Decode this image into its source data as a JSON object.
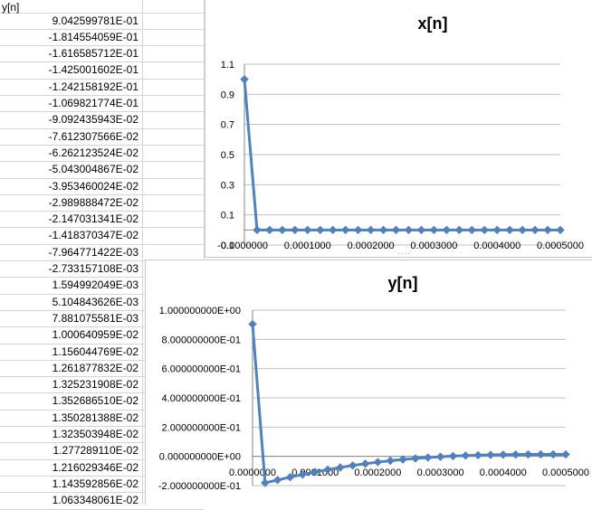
{
  "sheet": {
    "column_header": "y[n]",
    "values": [
      "9.042599781E-01",
      "-1.814554059E-01",
      "-1.616585712E-01",
      "-1.425001602E-01",
      "-1.242158192E-01",
      "-1.069821774E-01",
      "-9.092435943E-02",
      "-7.612307566E-02",
      "-6.262123524E-02",
      "-5.043004867E-02",
      "-3.953460024E-02",
      "-2.989888472E-02",
      "-2.147031341E-02",
      "-1.418370347E-02",
      "-7.964771422E-03",
      "-2.733157108E-03",
      "1.594992049E-03",
      "5.104843626E-03",
      "7.881075581E-03",
      "1.000640959E-02",
      "1.156044769E-02",
      "1.261877832E-02",
      "1.325231908E-02",
      "1.352686510E-02",
      "1.350281388E-02",
      "1.323503948E-02",
      "1.277289110E-02",
      "1.216029346E-02",
      "1.143592856E-02",
      "1.063348061E-02"
    ]
  },
  "chart_data": [
    {
      "type": "line",
      "title": "x[n]",
      "series_color": "#4f81bd",
      "x": [
        0,
        2e-05,
        4e-05,
        6e-05,
        8e-05,
        0.0001,
        0.00012,
        0.00014,
        0.00016,
        0.00018,
        0.0002,
        0.00022,
        0.00024,
        0.00026,
        0.00028,
        0.0003,
        0.00032,
        0.00034,
        0.00036,
        0.00038,
        0.0004,
        0.00042,
        0.00044,
        0.00046,
        0.00048,
        0.0005
      ],
      "y": [
        1,
        0,
        0,
        0,
        0,
        0,
        0,
        0,
        0,
        0,
        0,
        0,
        0,
        0,
        0,
        0,
        0,
        0,
        0,
        0,
        0,
        0,
        0,
        0,
        0,
        0
      ],
      "ylim": [
        -0.1,
        1.1
      ],
      "yticks": [
        "1.1",
        "0.9",
        "0.7",
        "0.5",
        "0.3",
        "0.1",
        "-0.1"
      ],
      "xticks": [
        "0.0000000",
        "0.0001000",
        "0.0002000",
        "0.0003000",
        "0.0004000",
        "0.0005000"
      ],
      "grid": true
    },
    {
      "type": "line",
      "title": "y[n]",
      "series_color": "#4f81bd",
      "x": [
        0,
        2e-05,
        4e-05,
        6e-05,
        8e-05,
        0.0001,
        0.00012,
        0.00014,
        0.00016,
        0.00018,
        0.0002,
        0.00022,
        0.00024,
        0.00026,
        0.00028,
        0.0003,
        0.00032,
        0.00034,
        0.00036,
        0.00038,
        0.0004,
        0.00042,
        0.00044,
        0.00046,
        0.00048,
        0.0005
      ],
      "y": [
        0.9042599781,
        -0.1814554059,
        -0.1616585712,
        -0.1425001602,
        -0.1242158192,
        -0.1069821774,
        -0.09092435943,
        -0.07612307566,
        -0.06262123524,
        -0.05043004867,
        -0.03953460024,
        -0.02989888472,
        -0.02147031341,
        -0.01418370347,
        -0.007964771422,
        -0.002733157108,
        0.001594992049,
        0.005104843626,
        0.007881075581,
        0.01000640959,
        0.01156044769,
        0.01261877832,
        0.01325231908,
        0.0135268651,
        0.01350281388,
        0.01323503948
      ],
      "ylim": [
        -0.2,
        1.0
      ],
      "yticks": [
        "1.000000000E+00",
        "8.000000000E-01",
        "6.000000000E-01",
        "4.000000000E-01",
        "2.000000000E-01",
        "0.000000000E+00",
        "-2.000000000E-01"
      ],
      "xticks": [
        "0.0000000",
        "0.0001000",
        "0.0002000",
        "0.0003000",
        "0.0004000",
        "0.0005000"
      ],
      "grid": true
    }
  ]
}
